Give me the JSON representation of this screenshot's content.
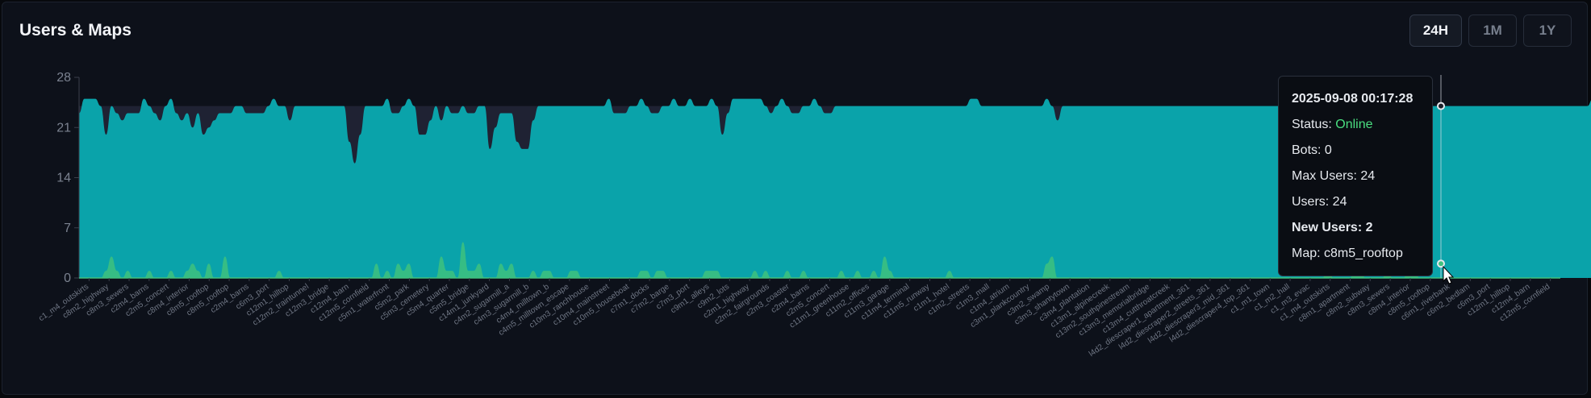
{
  "header": {
    "title": "Users & Maps"
  },
  "range_buttons": [
    {
      "label": "24H",
      "active": true
    },
    {
      "label": "1M",
      "active": false
    },
    {
      "label": "1Y",
      "active": false
    }
  ],
  "tooltip": {
    "timestamp": "2025-09-08 00:17:28",
    "status_label": "Status:",
    "status_value": "Online",
    "bots_line": "Bots: 0",
    "max_users_line": "Max Users: 24",
    "users_line": "Users: 24",
    "new_users_line": "New Users: 2",
    "map_line": "Map: c8m5_rooftop"
  },
  "colors": {
    "users_fill": "#0aa3aa",
    "max_users_fill": "#1f2233",
    "new_users_fill": "#3ec27e",
    "status_online": "#4ade80"
  },
  "chart_data": {
    "type": "area",
    "ylim": [
      0,
      28
    ],
    "yticks": [
      0,
      7,
      14,
      21,
      28
    ],
    "grid": false,
    "series": [
      {
        "name": "Max Users",
        "values": [
          24,
          24,
          24,
          24,
          24,
          24,
          24,
          24,
          24,
          24,
          24,
          24,
          24,
          24,
          24,
          24,
          24,
          24,
          24,
          24,
          24,
          24,
          24,
          24,
          24,
          24,
          24,
          24,
          24,
          24,
          24,
          24,
          24,
          24,
          24,
          24,
          24,
          24,
          24,
          24,
          24,
          24,
          24,
          24,
          24,
          24,
          24,
          24,
          24,
          24,
          24,
          24,
          24,
          24,
          24,
          24,
          24,
          24,
          24,
          24,
          24,
          24,
          24,
          24,
          24,
          24,
          24,
          24,
          24,
          24,
          24,
          24,
          24,
          24,
          24,
          24,
          24,
          24,
          24,
          24,
          24,
          24,
          24,
          24,
          24,
          24,
          24,
          24,
          24,
          24,
          24,
          24,
          24,
          24,
          24,
          24,
          24,
          24,
          24,
          24,
          24,
          24,
          24,
          24,
          24,
          24,
          24,
          24,
          24,
          24,
          24,
          24,
          24,
          24,
          24,
          24,
          24,
          24,
          24,
          24,
          24,
          24,
          24,
          24,
          24,
          24,
          24,
          24,
          24,
          24,
          24,
          24,
          24,
          24,
          24,
          24,
          24,
          24,
          24,
          24,
          24,
          24,
          24,
          24,
          24,
          24,
          24,
          24,
          24,
          24,
          24,
          24,
          24,
          24,
          24,
          24,
          24,
          24,
          24,
          24,
          24,
          24,
          24,
          24,
          24,
          24,
          24,
          24,
          24,
          24,
          24,
          24,
          24,
          24,
          24,
          24,
          24,
          24,
          24,
          24,
          24,
          24,
          24,
          24,
          24,
          24,
          24,
          24,
          24,
          24,
          24,
          24,
          24,
          24,
          24,
          24,
          24,
          24,
          24,
          24,
          24,
          24,
          24,
          24,
          24,
          24,
          24,
          24,
          24,
          24,
          24,
          24,
          24,
          24,
          24,
          24,
          24,
          24,
          24,
          24,
          24,
          24,
          24,
          24,
          24,
          24,
          24,
          24,
          24,
          24,
          24,
          24,
          24,
          24,
          24,
          24,
          24,
          24,
          24,
          24,
          24,
          24,
          24,
          24,
          24,
          24,
          24,
          24,
          24,
          24,
          24,
          24,
          24,
          24,
          24,
          24,
          24,
          24,
          24,
          24,
          24,
          24,
          24,
          24,
          24,
          24,
          24,
          24,
          24,
          24,
          24,
          24,
          24,
          24,
          24
        ]
      },
      {
        "name": "Users",
        "values": [
          23,
          25,
          25,
          25,
          24,
          20,
          24,
          23,
          22,
          23,
          23,
          23,
          25,
          24,
          23,
          22,
          24,
          25,
          23,
          22,
          23,
          21,
          23,
          20,
          21,
          22,
          23,
          23,
          23,
          24,
          24,
          23,
          23,
          23,
          23,
          24,
          25,
          24,
          24,
          22,
          24,
          24,
          24,
          24,
          24,
          24,
          24,
          24,
          24,
          24,
          19,
          16,
          20,
          24,
          24,
          24,
          24,
          25,
          23,
          23,
          24,
          25,
          24,
          20,
          20,
          22,
          24,
          22,
          24,
          23,
          23,
          24,
          23,
          23,
          24,
          24,
          18,
          21,
          23,
          23,
          23,
          19,
          18,
          18,
          22,
          24,
          24,
          24,
          24,
          24,
          24,
          24,
          24,
          24,
          24,
          24,
          24,
          24,
          25,
          23,
          23,
          23,
          24,
          24,
          25,
          24,
          23,
          23,
          24,
          24,
          25,
          24,
          24,
          25,
          24,
          24,
          24,
          25,
          24,
          20,
          23,
          25,
          25,
          25,
          25,
          25,
          25,
          24,
          23,
          24,
          25,
          24,
          23,
          23,
          24,
          24,
          25,
          24,
          23,
          23,
          24,
          24,
          24,
          24,
          24,
          24,
          24,
          24,
          24,
          24,
          24,
          24,
          24,
          24,
          24,
          24,
          24,
          24,
          24,
          24,
          24,
          24,
          24,
          24,
          24,
          25,
          25,
          24,
          24,
          24,
          24,
          24,
          24,
          24,
          24,
          24,
          24,
          24,
          24,
          25,
          24,
          22,
          24,
          24,
          24,
          24,
          24,
          24,
          24,
          24,
          24,
          24,
          24,
          24,
          24,
          24,
          24,
          24,
          24,
          24,
          24,
          24,
          24,
          24,
          24,
          24,
          24,
          24,
          24,
          24,
          24,
          24,
          24,
          24,
          24,
          24,
          24,
          24,
          24,
          24,
          24,
          24,
          24,
          24,
          24,
          24,
          24,
          24,
          24,
          24,
          24,
          24,
          25,
          24,
          24,
          24,
          24,
          24,
          24,
          24,
          25,
          24,
          24,
          24,
          24,
          24,
          24,
          24,
          24,
          24,
          24,
          24,
          24,
          24,
          24,
          24,
          24,
          24,
          24,
          24,
          24,
          24,
          24,
          24,
          24,
          24,
          24,
          24,
          24,
          24,
          24,
          24,
          24,
          24,
          24,
          24,
          24,
          24,
          24,
          24,
          25,
          24,
          24,
          24,
          25,
          24,
          23,
          23,
          24,
          24,
          24,
          24,
          24,
          24,
          24,
          25,
          24,
          24,
          24,
          24,
          24,
          24,
          24,
          23,
          24,
          24,
          25,
          24,
          24,
          25,
          24,
          24,
          24,
          24,
          24,
          25,
          24,
          24,
          23,
          23,
          24
        ]
      },
      {
        "name": "New Users",
        "values": [
          0,
          0,
          0,
          0,
          0,
          1,
          3,
          1,
          0,
          1,
          0,
          0,
          0,
          1,
          0,
          0,
          0,
          1,
          0,
          0,
          1,
          2,
          1,
          0,
          2,
          0,
          0,
          3,
          0,
          0,
          0,
          0,
          0,
          0,
          0,
          0,
          0,
          1,
          0,
          0,
          0,
          0,
          0,
          0,
          0,
          0,
          0,
          0,
          0,
          0,
          0,
          0,
          0,
          0,
          0,
          2,
          0,
          1,
          0,
          2,
          1,
          2,
          0,
          0,
          0,
          0,
          0,
          3,
          1,
          1,
          0,
          5,
          1,
          1,
          2,
          0,
          0,
          0,
          2,
          1,
          2,
          0,
          0,
          0,
          1,
          0,
          1,
          1,
          0,
          0,
          0,
          1,
          1,
          0,
          0,
          0,
          0,
          0,
          0,
          0,
          0,
          0,
          0,
          0,
          1,
          1,
          0,
          1,
          1,
          0,
          0,
          0,
          0,
          0,
          0,
          0,
          1,
          1,
          1,
          0,
          0,
          0,
          0,
          0,
          0,
          1,
          0,
          1,
          0,
          0,
          0,
          1,
          0,
          0,
          1,
          0,
          0,
          0,
          0,
          0,
          0,
          1,
          0,
          0,
          1,
          0,
          0,
          1,
          0,
          3,
          1,
          0,
          0,
          0,
          0,
          0,
          0,
          0,
          0,
          0,
          0,
          1,
          0,
          0,
          0,
          0,
          0,
          0,
          0,
          0,
          0,
          0,
          0,
          0,
          0,
          0,
          0,
          0,
          0,
          2,
          3,
          0,
          0,
          0,
          0,
          0,
          0,
          0,
          0,
          0,
          0,
          0,
          0,
          0,
          0,
          0,
          0,
          0,
          0,
          0,
          0,
          0,
          0,
          0,
          0,
          0,
          0,
          0,
          0,
          0,
          0,
          0,
          0,
          0,
          0,
          0,
          0,
          0,
          0,
          0,
          0,
          0,
          0,
          0,
          0,
          0,
          0,
          0,
          0,
          0,
          0,
          2,
          0,
          0,
          0,
          0,
          1,
          1,
          0,
          0,
          0,
          0,
          1,
          0,
          0,
          0,
          2,
          1,
          0,
          0,
          0,
          0,
          0,
          0,
          0,
          0,
          0,
          0,
          0,
          0,
          0,
          0,
          0,
          0,
          0,
          0,
          0,
          0,
          0,
          0,
          0,
          0,
          0,
          0,
          0,
          0,
          0,
          0,
          0,
          0,
          0,
          0,
          0,
          0,
          0,
          0,
          0,
          0,
          0,
          0,
          0,
          0,
          0,
          0,
          0,
          0,
          0,
          0,
          0,
          0,
          0,
          0,
          0,
          0,
          0,
          0,
          0,
          0,
          0,
          0,
          0,
          0,
          0,
          0,
          0,
          0,
          0,
          0,
          0,
          0,
          0,
          0,
          0
        ]
      }
    ],
    "x_tick_labels": [
      "c1_m4_outskirts",
      "c8m2_highway",
      "c8m3_sewers",
      "c2m4_barns",
      "c2m5_concert",
      "c8m4_interior",
      "c8m5_rooftop",
      "c8m5_rooftop",
      "c2m4_barns",
      "c6m3_port",
      "c12m1_hilltop",
      "c12m2_traintunnel",
      "c12m3_bridge",
      "c12m4_barn",
      "c12m5_cornfield",
      "c5m1_waterfront",
      "c5m2_park",
      "c5m3_cemetery",
      "c5m4_quarter",
      "c5m5_bridge",
      "c14m1_junkyard",
      "c4m2_sugarmill_a",
      "c4m3_sugarmill_b",
      "c4m4_milltown_b",
      "c4m5_milltown_escape",
      "c10m3_ranchhouse",
      "c10m4_mainstreet",
      "c10m5_houseboat",
      "c7m1_docks",
      "c7m2_barge",
      "c7m3_port",
      "c9m1_alleys",
      "c9m2_lots",
      "c2m1_highway",
      "c2m2_fairgrounds",
      "c2m3_coaster",
      "c2m4_barns",
      "c2m5_concert",
      "c11m1_greenhouse",
      "c11m2_offices",
      "c11m3_garage",
      "c11m4_terminal",
      "c11m5_runway",
      "c1m1_hotel",
      "c1m2_streets",
      "c1m3_mall",
      "c1m4_atrium",
      "c3m1_plankcountry",
      "c3m2_swamp",
      "c3m3_shantytown",
      "c3m4_plantation",
      "c13m1_alpinecreek",
      "c13m2_southpinestream",
      "c13m3_memorialbridge",
      "c13m4_cutthroatcreek",
      "l4d2_diescraper1_apartment_361",
      "l4d2_diescraper2_streets_361",
      "l4d2_diescraper3_mid_361",
      "l4d2_diescraper4_top_361",
      "c1_m1_town",
      "c1_m2_hall",
      "c1_m3_evac",
      "c1_m4_outskirts",
      "c8m1_apartment",
      "c8m2_subway",
      "c8m3_sewers",
      "c8m4_interior",
      "c8m5_rooftop",
      "c6m1_riverbank",
      "c6m2_bedlam",
      "c6m3_port",
      "c12m1_hilltop",
      "c12m4_barn",
      "c12m5_cornfield"
    ]
  }
}
